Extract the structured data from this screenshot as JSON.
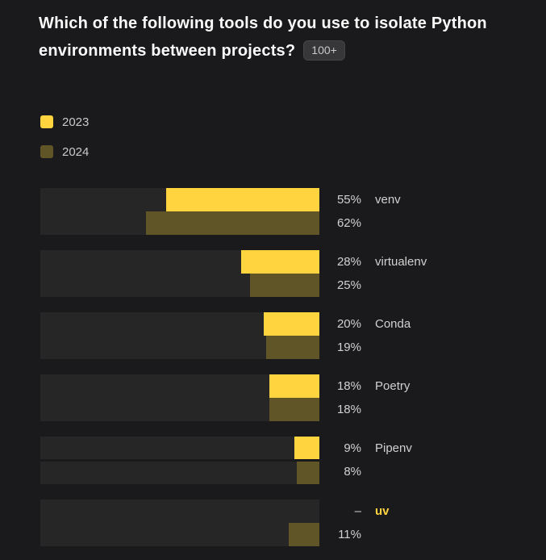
{
  "header": {
    "title": "Which of the following tools do you use to isolate Python environments between projects?",
    "badge": "100+"
  },
  "legend": {
    "items": [
      {
        "label": "2023",
        "color": "#ffd43f"
      },
      {
        "label": "2024",
        "color": "#5f5526"
      }
    ]
  },
  "chart_data": {
    "type": "bar",
    "orientation": "horizontal",
    "bars_right_aligned": true,
    "value_axis": {
      "min": 0,
      "max": 100,
      "unit": "%"
    },
    "categories": [
      "venv",
      "virtualenv",
      "Conda",
      "Poetry",
      "Pipenv",
      "uv"
    ],
    "series": [
      {
        "name": "2023",
        "color": "#ffd43f",
        "values": [
          55,
          28,
          20,
          18,
          9,
          null
        ],
        "display_labels": [
          "55%",
          "28%",
          "20%",
          "18%",
          "9%",
          "–"
        ]
      },
      {
        "name": "2024",
        "color": "#5f5526",
        "values": [
          62,
          25,
          19,
          18,
          8,
          11
        ],
        "display_labels": [
          "62%",
          "25%",
          "19%",
          "18%",
          "8%",
          "11%"
        ]
      }
    ],
    "highlighted_category": "uv",
    "missing_value_placeholder": "–",
    "legend_position": "top-left",
    "grid": false
  },
  "colors": {
    "background": "#1a1a1c",
    "bar_track": "#262626",
    "series_2023": "#ffd43f",
    "series_2024": "#5f5526",
    "text_title": "#fafafa",
    "text_secondary": "#d1d1d1",
    "highlight_text": "#ffd43f",
    "badge_background": "#37373a",
    "badge_text": "#c9c9c9"
  }
}
